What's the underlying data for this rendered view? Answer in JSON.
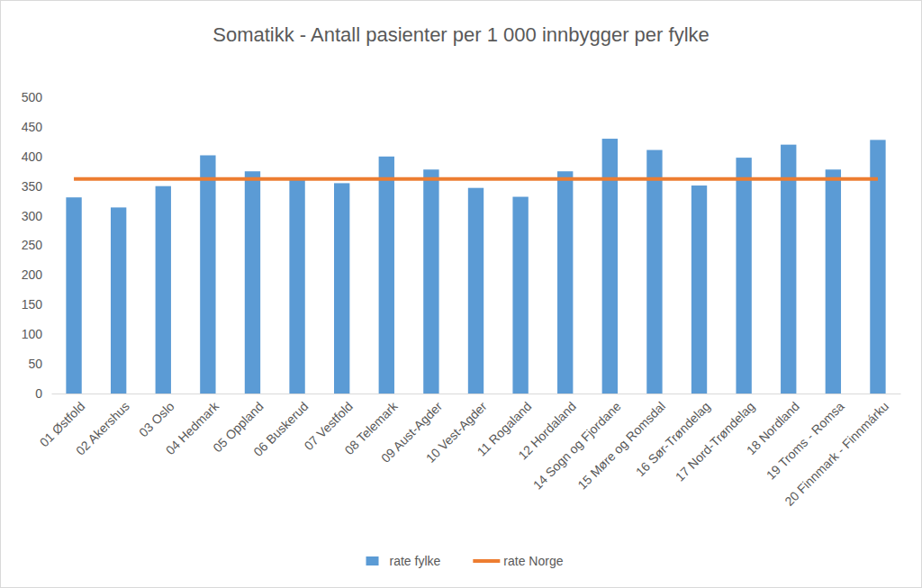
{
  "chart_data": {
    "type": "bar",
    "title": "Somatikk - Antall pasienter per 1 000 innbygger per fylke",
    "categories": [
      "01 Østfold",
      "02 Akershus",
      "03 Oslo",
      "04 Hedmark",
      "05 Oppland",
      "06 Buskerud",
      "07 Vestfold",
      "08 Telemark",
      "09 Aust-Agder",
      "10 Vest-Agder",
      "11 Rogaland",
      "12 Hordaland",
      "14 Sogn og Fjordane",
      "15 Møre og Romsdal",
      "16 Sør-Trøndelag",
      "17 Nord-Trøndelag",
      "18 Nordland",
      "19 Troms - Romsa",
      "20 Finnmark - Finnmárku"
    ],
    "series": [
      {
        "name": "rate fylke",
        "type": "bar",
        "color": "#5b9bd5",
        "values": [
          331,
          314,
          350,
          402,
          375,
          362,
          355,
          400,
          378,
          347,
          332,
          375,
          430,
          411,
          351,
          398,
          420,
          378,
          428
        ]
      },
      {
        "name": "rate Norge",
        "type": "line",
        "color": "#ed7d31",
        "values": [
          362,
          362,
          362,
          362,
          362,
          362,
          362,
          362,
          362,
          362,
          362,
          362,
          362,
          362,
          362,
          362,
          362,
          362,
          362
        ]
      }
    ],
    "ylim": [
      0,
      500
    ],
    "yticks": [
      0,
      50,
      100,
      150,
      200,
      250,
      300,
      350,
      400,
      450,
      500
    ],
    "grid": false,
    "legend": "bottom"
  }
}
